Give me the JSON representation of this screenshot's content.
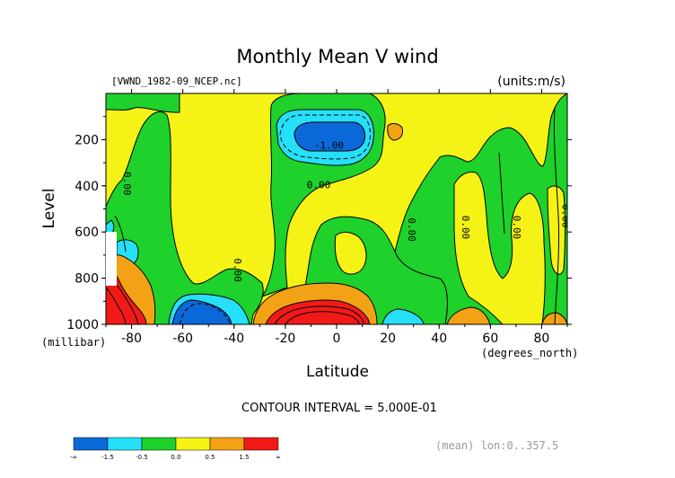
{
  "title": "Monthly Mean V wind",
  "file_label": "[VWND_1982-09_NCEP.nc]",
  "units_label": "(units:m/s)",
  "xlabel": "Latitude",
  "ylabel": "Level",
  "y_units": "(millibar)",
  "x_units": "(degrees_north)",
  "contour_interval": "CONTOUR INTERVAL = 5.000E-01",
  "footer_note": "(mean) lon:0..357.5",
  "chart_data": {
    "type": "heatmap",
    "title": "Monthly Mean V wind",
    "xlabel": "Latitude",
    "ylabel": "Level",
    "xlim": [
      -90,
      90
    ],
    "ylim": [
      1000,
      0
    ],
    "x_ticks": [
      -80,
      -60,
      -40,
      -20,
      0,
      20,
      40,
      60,
      80
    ],
    "x_tick_labels": [
      "-80",
      "-60",
      "-40",
      "-20",
      "0",
      "20",
      "40",
      "60",
      "80"
    ],
    "y_ticks": [
      200,
      400,
      600,
      800,
      1000
    ],
    "y_tick_labels": [
      "200",
      "400",
      "600",
      "800",
      "1000"
    ],
    "contour_labels": [
      {
        "text": "-1.00",
        "x": -3,
        "y": 240
      },
      {
        "text": "0.00",
        "x": -7,
        "y": 410
      },
      {
        "text": "0.00",
        "x": -83,
        "y": 390
      },
      {
        "text": "0.00",
        "x": -40,
        "y": 765
      },
      {
        "text": "0.00",
        "x": 28,
        "y": 590
      },
      {
        "text": "0.00",
        "x": 49,
        "y": 580
      },
      {
        "text": "0.00",
        "x": 69,
        "y": 580
      },
      {
        "text": "0.00",
        "x": 88,
        "y": 530
      }
    ],
    "colorbar": {
      "colors": [
        "#0b68d9",
        "#25e0f8",
        "#1ed12b",
        "#f5f316",
        "#f2a214",
        "#f21a18"
      ],
      "tick_labels": [
        "-∞",
        "-1.5",
        "-0.5",
        "0.0",
        "0.5",
        "1.5",
        "∞"
      ]
    }
  }
}
